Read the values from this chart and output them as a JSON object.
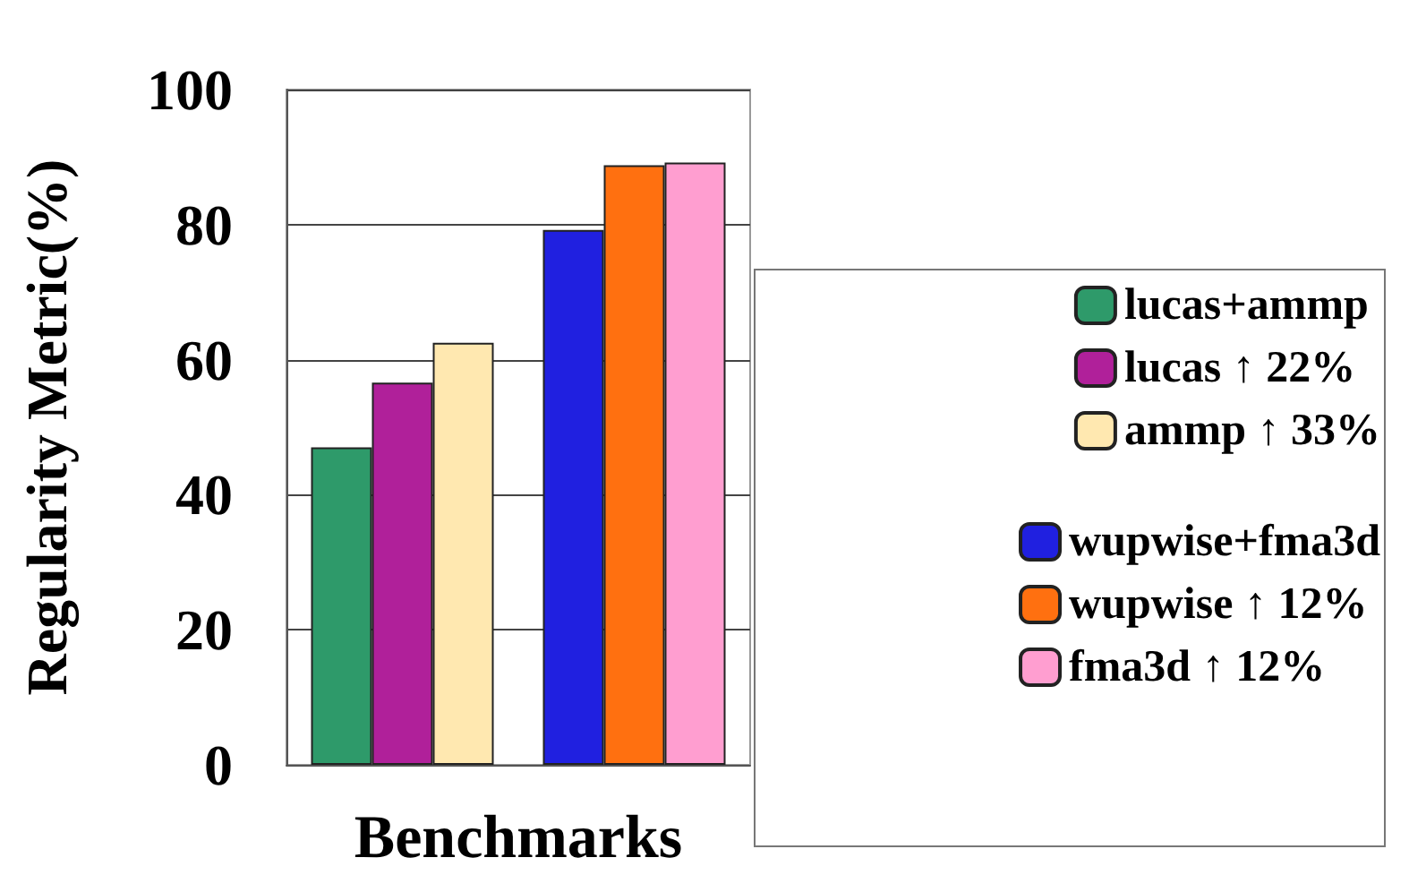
{
  "chart_data": {
    "type": "bar",
    "xlabel": "Benchmarks",
    "ylabel": "Regularity Metric(%)",
    "categories": [
      null,
      null
    ],
    "series": [
      {
        "name": "lucas+ammp",
        "color": "#2e9a6a",
        "values": [
          47,
          null
        ]
      },
      {
        "name": "lucas ↑ 22%",
        "color": "#b0209a",
        "values": [
          56.6,
          null
        ]
      },
      {
        "name": "ammp ↑ 33%",
        "color": "#ffe8b0",
        "values": [
          62.5,
          null
        ]
      },
      {
        "name": "wupwise+fma3d",
        "color": "#2020e0",
        "values": [
          null,
          79.2
        ]
      },
      {
        "name": "wupwise ↑ 12%",
        "color": "#ff7010",
        "values": [
          null,
          88.8
        ]
      },
      {
        "name": "fma3d ↑ 12%",
        "color": "#ff9ed0",
        "values": [
          null,
          89.2
        ]
      }
    ],
    "ylim": [
      0,
      100
    ],
    "yticks": [
      0,
      20,
      40,
      60,
      80,
      100
    ],
    "grid": "y",
    "legend": "right"
  }
}
